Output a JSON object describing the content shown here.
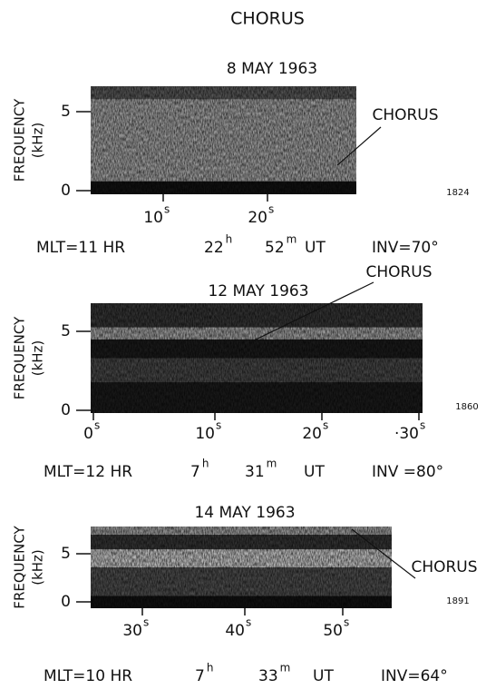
{
  "title": "CHORUS",
  "panels": [
    {
      "date": "8 MAY 1963",
      "y_label": [
        "FREQUENCY",
        "(kHz)"
      ],
      "yticks": [
        "5",
        "0"
      ],
      "xticks": [
        {
          "num": "10",
          "unit": "s"
        },
        {
          "num": "20",
          "unit": "s"
        }
      ],
      "annotation": "CHORUS",
      "figure_number": "1824",
      "footer": {
        "mlt": "MLT=11 HR",
        "hour": {
          "num": "22",
          "unit": "h"
        },
        "minute": {
          "num": "52",
          "unit": "m"
        },
        "ut": "UT",
        "inv": "INV=70°"
      }
    },
    {
      "date": "12 MAY 1963",
      "y_label": [
        "FREQUENCY",
        "(kHz)"
      ],
      "yticks": [
        "5",
        "0"
      ],
      "xticks": [
        {
          "num": "0",
          "unit": "s"
        },
        {
          "num": "10",
          "unit": "s"
        },
        {
          "num": "20",
          "unit": "s"
        },
        {
          "num": "·30",
          "unit": "s"
        }
      ],
      "annotation": "CHORUS",
      "figure_number": "1860",
      "footer": {
        "mlt": "MLT=12 HR",
        "hour": {
          "num": "7",
          "unit": "h"
        },
        "minute": {
          "num": "31",
          "unit": "m"
        },
        "ut": "UT",
        "inv": "INV =80°"
      }
    },
    {
      "date": "14 MAY 1963",
      "y_label": [
        "FREQUENCY",
        "(kHz)"
      ],
      "yticks": [
        "5",
        "0"
      ],
      "xticks": [
        {
          "num": "30",
          "unit": "s"
        },
        {
          "num": "40",
          "unit": "s"
        },
        {
          "num": "50",
          "unit": "s"
        }
      ],
      "annotation": "CHORUS",
      "figure_number": "1891",
      "footer": {
        "mlt": "MLT=10 HR",
        "hour": {
          "num": "7",
          "unit": "h"
        },
        "minute": {
          "num": "33",
          "unit": "m"
        },
        "ut": "UT",
        "inv": "INV=64°"
      }
    }
  ]
}
